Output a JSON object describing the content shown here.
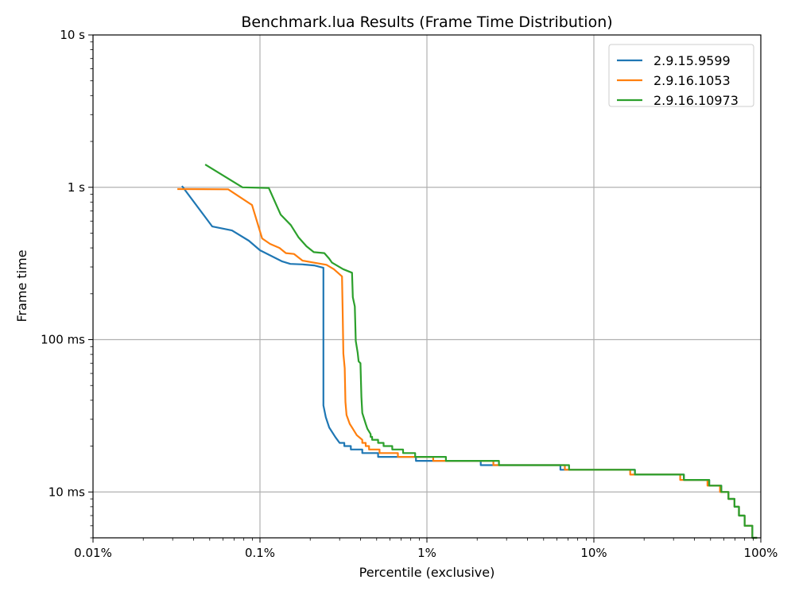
{
  "chart_data": {
    "type": "line",
    "title": "Benchmark.lua Results (Frame Time Distribution)",
    "xlabel": "Percentile (exclusive)",
    "ylabel": "Frame time",
    "xscale": "log",
    "yscale": "log",
    "xlim": [
      0.01,
      100
    ],
    "ylim": [
      0.005,
      10
    ],
    "x_unit": "percent",
    "y_unit": "seconds",
    "grid": true,
    "legend_position": "top-right",
    "x_ticks": [
      {
        "v": 0.01,
        "label": "0.01%"
      },
      {
        "v": 0.1,
        "label": "0.1%"
      },
      {
        "v": 1,
        "label": "1%"
      },
      {
        "v": 10,
        "label": "10%"
      },
      {
        "v": 100,
        "label": "100%"
      }
    ],
    "y_ticks": [
      {
        "v": 0.01,
        "label": "10 ms"
      },
      {
        "v": 0.1,
        "label": "100 ms"
      },
      {
        "v": 1,
        "label": "1 s"
      },
      {
        "v": 10,
        "label": "10 s"
      }
    ],
    "series": [
      {
        "name": "2.9.15.9599",
        "color": "#1f77b4",
        "points": [
          [
            0.0341,
            1.02
          ],
          [
            0.0518,
            0.553
          ],
          [
            0.068,
            0.521
          ],
          [
            0.0858,
            0.446
          ],
          [
            0.1,
            0.386
          ],
          [
            0.136,
            0.326
          ],
          [
            0.152,
            0.314
          ],
          [
            0.18,
            0.312
          ],
          [
            0.211,
            0.307
          ],
          [
            0.24,
            0.296
          ],
          [
            0.24,
            0.037
          ],
          [
            0.248,
            0.031
          ],
          [
            0.26,
            0.0265
          ],
          [
            0.283,
            0.0229
          ],
          [
            0.3,
            0.021
          ]
        ],
        "steps": [
          [
            0.32,
            0.021
          ],
          [
            0.35,
            0.02
          ],
          [
            0.41,
            0.019
          ],
          [
            0.51,
            0.018
          ],
          [
            0.86,
            0.017
          ],
          [
            2.1,
            0.016
          ],
          [
            6.3,
            0.015
          ],
          [
            17.6,
            0.014
          ],
          [
            34.6,
            0.013
          ],
          [
            49.1,
            0.012
          ],
          [
            58,
            0.011
          ],
          [
            64,
            0.01
          ],
          [
            69.6,
            0.009
          ],
          [
            74,
            0.008
          ],
          [
            80,
            0.007
          ],
          [
            89,
            0.006
          ],
          [
            95,
            0.005
          ]
        ]
      },
      {
        "name": "2.9.16.1053",
        "color": "#ff7f0e",
        "points": [
          [
            0.032,
            0.973
          ],
          [
            0.0645,
            0.97
          ],
          [
            0.0896,
            0.765
          ],
          [
            0.103,
            0.462
          ],
          [
            0.115,
            0.425
          ],
          [
            0.131,
            0.4
          ],
          [
            0.143,
            0.37
          ],
          [
            0.16,
            0.365
          ],
          [
            0.18,
            0.33
          ],
          [
            0.21,
            0.32
          ],
          [
            0.25,
            0.31
          ],
          [
            0.277,
            0.29
          ],
          [
            0.31,
            0.26
          ],
          [
            0.313,
            0.145
          ],
          [
            0.316,
            0.081
          ],
          [
            0.322,
            0.065
          ],
          [
            0.325,
            0.039
          ],
          [
            0.33,
            0.032
          ],
          [
            0.345,
            0.028
          ],
          [
            0.36,
            0.026
          ],
          [
            0.38,
            0.0236
          ],
          [
            0.41,
            0.022
          ]
        ],
        "steps": [
          [
            0.43,
            0.021
          ],
          [
            0.45,
            0.02
          ],
          [
            0.52,
            0.019
          ],
          [
            0.67,
            0.018
          ],
          [
            1.09,
            0.017
          ],
          [
            2.5,
            0.016
          ],
          [
            6.7,
            0.015
          ],
          [
            16.5,
            0.014
          ],
          [
            32.9,
            0.013
          ],
          [
            47.9,
            0.012
          ],
          [
            57,
            0.011
          ],
          [
            64,
            0.01
          ],
          [
            69.6,
            0.009
          ],
          [
            74,
            0.008
          ],
          [
            80,
            0.007
          ],
          [
            89,
            0.006
          ],
          [
            95,
            0.005
          ]
        ]
      },
      {
        "name": "2.9.16.10973",
        "color": "#2ca02c",
        "points": [
          [
            0.047,
            1.41
          ],
          [
            0.0786,
            1.0
          ],
          [
            0.113,
            0.99
          ],
          [
            0.133,
            0.662
          ],
          [
            0.153,
            0.565
          ],
          [
            0.17,
            0.47
          ],
          [
            0.19,
            0.41
          ],
          [
            0.21,
            0.375
          ],
          [
            0.243,
            0.37
          ],
          [
            0.26,
            0.34
          ],
          [
            0.27,
            0.32
          ],
          [
            0.315,
            0.29
          ],
          [
            0.356,
            0.275
          ],
          [
            0.36,
            0.19
          ],
          [
            0.37,
            0.165
          ],
          [
            0.375,
            0.098
          ],
          [
            0.385,
            0.082
          ],
          [
            0.39,
            0.072
          ],
          [
            0.4,
            0.07
          ],
          [
            0.405,
            0.042
          ],
          [
            0.41,
            0.033
          ],
          [
            0.43,
            0.028
          ],
          [
            0.44,
            0.026
          ],
          [
            0.46,
            0.024
          ]
        ],
        "steps": [
          [
            0.47,
            0.023
          ],
          [
            0.51,
            0.022
          ],
          [
            0.55,
            0.021
          ],
          [
            0.62,
            0.02
          ],
          [
            0.72,
            0.019
          ],
          [
            0.85,
            0.018
          ],
          [
            1.3,
            0.017
          ],
          [
            2.7,
            0.016
          ],
          [
            7.1,
            0.015
          ],
          [
            17.6,
            0.014
          ],
          [
            34.6,
            0.013
          ],
          [
            49.1,
            0.012
          ],
          [
            58,
            0.011
          ],
          [
            64,
            0.01
          ],
          [
            69.6,
            0.009
          ],
          [
            74,
            0.008
          ],
          [
            80,
            0.007
          ],
          [
            89,
            0.006
          ],
          [
            95,
            0.005
          ]
        ]
      }
    ]
  }
}
